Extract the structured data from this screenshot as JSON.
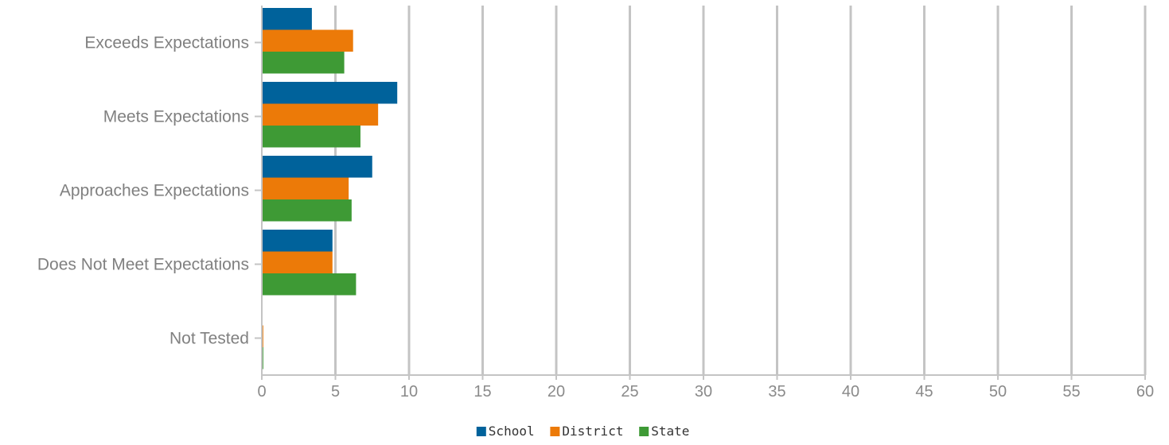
{
  "chart_data": {
    "type": "bar",
    "orientation": "horizontal",
    "title": "",
    "xlabel": "",
    "ylabel": "",
    "categories": [
      "Exceeds Expectations",
      "Meets Expectations",
      "Approaches Expectations",
      "Does Not Meet Expectations",
      "Not Tested"
    ],
    "series": [
      {
        "name": "School",
        "color": "#00629b",
        "values": [
          3.4,
          9.2,
          7.5,
          4.8,
          0.0
        ]
      },
      {
        "name": "District",
        "color": "#ec7a08",
        "values": [
          6.2,
          7.9,
          5.9,
          4.8,
          0.1
        ]
      },
      {
        "name": "State",
        "color": "#3e9a35",
        "values": [
          5.6,
          6.7,
          6.1,
          6.4,
          0.1
        ]
      }
    ],
    "xlim": [
      0,
      60
    ],
    "xticks": [
      0,
      5,
      10,
      15,
      20,
      25,
      30,
      35,
      40,
      45,
      50,
      55,
      60
    ],
    "grid": "vertical",
    "legend_position": "bottom-center"
  }
}
